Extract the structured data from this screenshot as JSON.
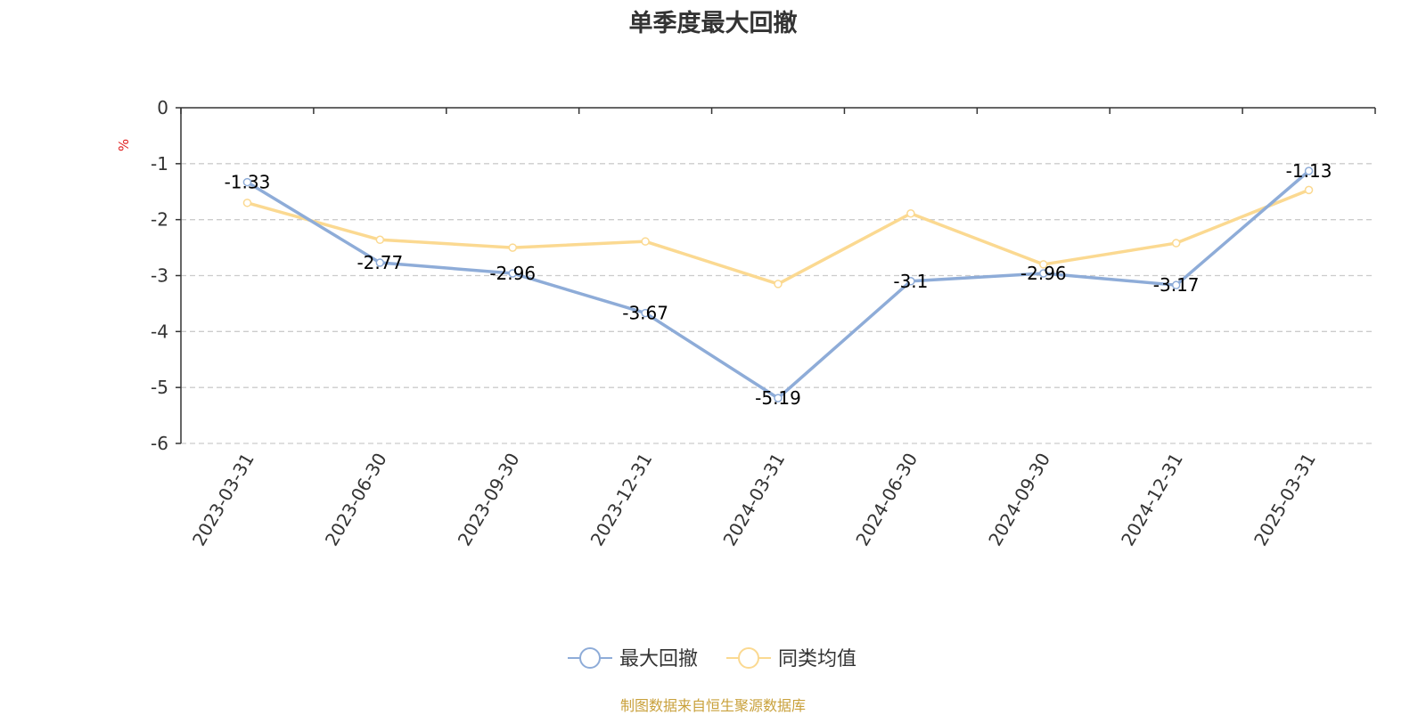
{
  "title": "单季度最大回撤",
  "source_note": "制图数据来自恒生聚源数据库",
  "chart_data": {
    "type": "line",
    "title": "单季度最大回撤",
    "ylabel": "%",
    "xlabel": "",
    "ylim": [
      -6,
      0
    ],
    "yticks": [
      0,
      -1,
      -2,
      -3,
      -4,
      -5,
      -6
    ],
    "grid": true,
    "legend_position": "bottom-center",
    "categories": [
      "2023-03-31",
      "2023-06-30",
      "2023-09-30",
      "2023-12-31",
      "2024-03-31",
      "2024-06-30",
      "2024-09-30",
      "2024-12-31",
      "2025-03-31"
    ],
    "series": [
      {
        "name": "最大回撤",
        "color": "#8eacd8",
        "values": [
          -1.33,
          -2.77,
          -2.96,
          -3.67,
          -5.19,
          -3.1,
          -2.96,
          -3.17,
          -1.13
        ],
        "labels": [
          "-1.33",
          "-2.77",
          "-2.96",
          "-3.67",
          "-5.19",
          "-3.1",
          "-2.96",
          "-3.17",
          "-1.13"
        ]
      },
      {
        "name": "同类均值",
        "color": "#fbd991",
        "values": [
          -1.7,
          -2.36,
          -2.5,
          -2.39,
          -3.15,
          -1.89,
          -2.8,
          -2.42,
          -1.47
        ]
      }
    ]
  },
  "colors": {
    "ylabel": "#e02020",
    "axis": "#333333",
    "grid": "#cccccc",
    "source_note": "#c9a13c"
  }
}
